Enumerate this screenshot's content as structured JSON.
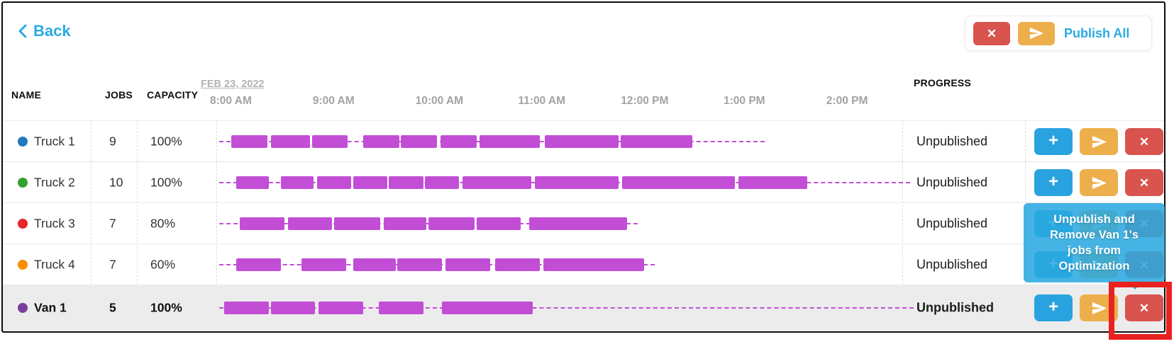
{
  "header": {
    "back_label": "Back",
    "publish_all_label": "Publish All"
  },
  "table": {
    "columns": {
      "name": "NAME",
      "jobs": "JOBS",
      "capacity": "CAPACITY",
      "progress": "PROGRESS"
    },
    "timeline": {
      "date_label": "FEB 23, 2022",
      "ticks": [
        "8:00 AM",
        "9:00 AM",
        "10:00 AM",
        "11:00 AM",
        "12:00 PM",
        "1:00 PM",
        "2:00 PM"
      ],
      "start_time": "8:00 AM",
      "minutes_per_tick": 60
    },
    "rows": [
      {
        "name": "Truck 1",
        "dot_color": "#2278bd",
        "jobs": "9",
        "capacity": "100%",
        "progress": "Unpublished",
        "highlighted": false,
        "bars_min": [
          [
            7,
            28
          ],
          [
            30,
            53
          ],
          [
            54,
            75
          ],
          [
            84,
            105
          ],
          [
            106,
            127
          ],
          [
            129,
            150
          ],
          [
            152,
            187
          ],
          [
            190,
            233
          ],
          [
            234,
            276
          ]
        ],
        "trail_end_min": 318
      },
      {
        "name": "Truck 2",
        "dot_color": "#33a12c",
        "jobs": "10",
        "capacity": "100%",
        "progress": "Unpublished",
        "highlighted": false,
        "bars_min": [
          [
            10,
            29
          ],
          [
            36,
            55
          ],
          [
            57,
            77
          ],
          [
            78,
            98
          ],
          [
            99,
            119
          ],
          [
            120,
            140
          ],
          [
            142,
            182
          ],
          [
            184,
            233
          ],
          [
            235,
            301
          ],
          [
            303,
            343
          ]
        ],
        "trail_end_min": 403
      },
      {
        "name": "Truck 3",
        "dot_color": "#e8252b",
        "jobs": "7",
        "capacity": "80%",
        "progress": "Unpublished",
        "highlighted": false,
        "bars_min": [
          [
            12,
            38
          ],
          [
            40,
            66
          ],
          [
            67,
            94
          ],
          [
            96,
            121
          ],
          [
            122,
            149
          ],
          [
            150,
            176
          ],
          [
            181,
            238
          ]
        ],
        "trail_end_min": 244
      },
      {
        "name": "Truck 4",
        "dot_color": "#fb8d00",
        "jobs": "7",
        "capacity": "60%",
        "progress": "Unpublished",
        "highlighted": false,
        "bars_min": [
          [
            10,
            36
          ],
          [
            48,
            74
          ],
          [
            78,
            103
          ],
          [
            104,
            130
          ],
          [
            132,
            158
          ],
          [
            161,
            187
          ],
          [
            189,
            248
          ]
        ],
        "trail_end_min": 254
      },
      {
        "name": "Van 1",
        "dot_color": "#7a3f9d",
        "jobs": "5",
        "capacity": "100%",
        "progress": "Unpublished",
        "highlighted": true,
        "bars_min": [
          [
            3,
            29
          ],
          [
            30,
            56
          ],
          [
            58,
            84
          ],
          [
            93,
            119
          ],
          [
            130,
            183
          ]
        ],
        "trail_end_min": 405
      }
    ]
  },
  "tooltip": {
    "text": "Unpublish and Remove Van 1's jobs from Optimization"
  },
  "icons": {
    "back_icon": "chevron-left",
    "close_icon": "✕",
    "add_icon": "+",
    "send_icon": "paper-plane"
  },
  "colors": {
    "accent_blue": "#29abe2",
    "button_blue": "#29a3df",
    "button_orange": "#edaf4c",
    "button_red": "#d9534f",
    "bar_magenta": "#c24ed6",
    "tooltip_blue": "#29a9e1",
    "highlight_red": "#e8231f",
    "row_highlight_bg": "#ececec",
    "dot_truck1": "#2278bd",
    "dot_truck2": "#33a12c",
    "dot_truck3": "#e8252b",
    "dot_truck4": "#fb8d00",
    "dot_van1": "#7a3f9d"
  }
}
